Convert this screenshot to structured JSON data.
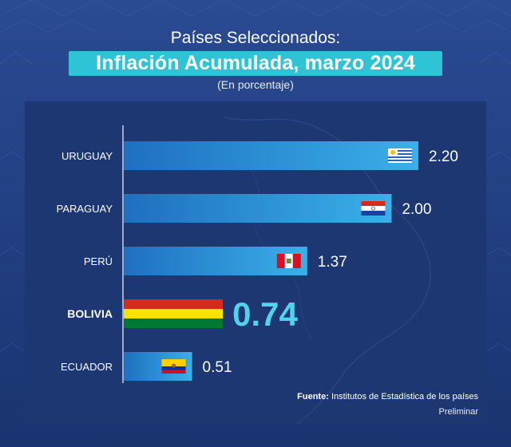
{
  "header": {
    "line1": "Países Seleccionados:",
    "title": "Inflación Acumulada, marzo 2024",
    "units": "(En porcentaje)"
  },
  "footer": {
    "source_label": "Fuente:",
    "source_text": "Institutos de Estadística de los países",
    "note": "Preliminar"
  },
  "colors": {
    "background": "#1a3470",
    "title_box": "#2ec4d6",
    "bar_start": "#1f6fc0",
    "bar_end": "#3ab0e8",
    "highlight_value": "#4fd3ee"
  },
  "chart_data": {
    "type": "bar",
    "orientation": "horizontal",
    "title": "Inflación Acumulada, marzo 2024",
    "subtitle": "(En porcentaje)",
    "categories": [
      "URUGUAY",
      "PARAGUAY",
      "PERÚ",
      "BOLIVIA",
      "ECUADOR"
    ],
    "values": [
      2.2,
      2.0,
      1.37,
      0.74,
      0.51
    ],
    "value_labels": [
      "2.20",
      "2.00",
      "1.37",
      "0.74",
      "0.51"
    ],
    "highlight": "BOLIVIA",
    "flags": [
      "uruguay-flag-icon",
      "paraguay-flag-icon",
      "peru-flag-icon",
      "bolivia-flag-icon",
      "ecuador-flag-icon"
    ],
    "xlim": [
      0,
      2.2
    ],
    "grid": false,
    "xlabel": "",
    "ylabel": ""
  }
}
